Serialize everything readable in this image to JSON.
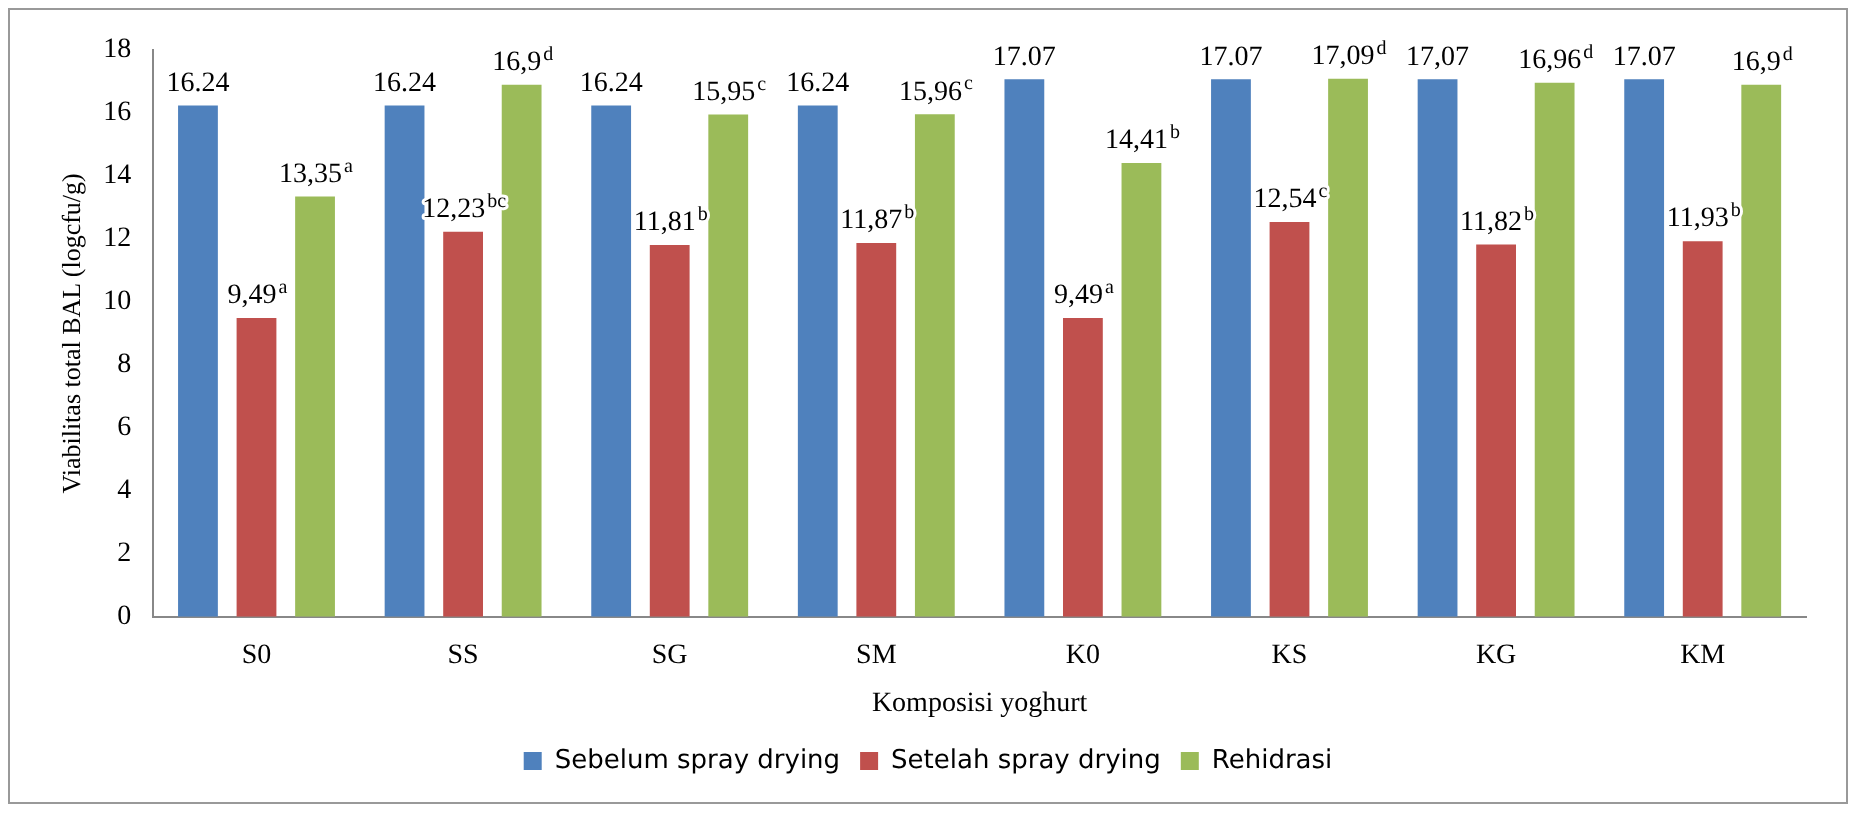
{
  "chart_data": {
    "type": "bar",
    "xlabel": "Komposisi yoghurt",
    "ylabel": "Viabilitas total BAL (logcfu/g)",
    "categories": [
      "S0",
      "SS",
      "SG",
      "SM",
      "K0",
      "KS",
      "KG",
      "KM"
    ],
    "series": [
      {
        "name": "Sebelum spray drying",
        "color": "#4f81bd",
        "values": [
          16.24,
          16.24,
          16.24,
          16.24,
          17.07,
          17.07,
          17.07,
          17.07
        ],
        "value_labels": [
          "16.24",
          "16.24",
          "16.24",
          "16.24",
          "17.07",
          "17.07",
          "17,07",
          "17.07"
        ]
      },
      {
        "name": "Setelah spray drying",
        "color": "#c0504d",
        "values": [
          9.49,
          12.23,
          11.81,
          11.87,
          9.49,
          12.54,
          11.82,
          11.93
        ],
        "value_labels": [
          "9,49$^{a}$",
          "12,23$^{bc}$",
          "11,81$^{b}$",
          "11,87$^{b}$",
          "9,49$^{a}$",
          "12,54$^{c}$",
          "11,82$^{b}$",
          "11,93$^{b}$"
        ]
      },
      {
        "name": "Rehidrasi",
        "color": "#9bbb59",
        "values": [
          13.35,
          16.9,
          15.95,
          15.96,
          14.41,
          17.09,
          16.96,
          16.9
        ],
        "value_labels": [
          "13,35$^{a}$",
          "16,9$^{d}$",
          "15,95$^{c}$",
          "15,96$^{c}$",
          "14,41$^{b}$",
          "17,09$^{d}$",
          "16,96$^{d}$",
          "16,9$^{d}$"
        ]
      }
    ],
    "ylim": [
      0,
      18
    ],
    "yticks": [
      0,
      2,
      4,
      6,
      8,
      10,
      12,
      14,
      16,
      18
    ],
    "grid": false,
    "legend": "bottom"
  }
}
